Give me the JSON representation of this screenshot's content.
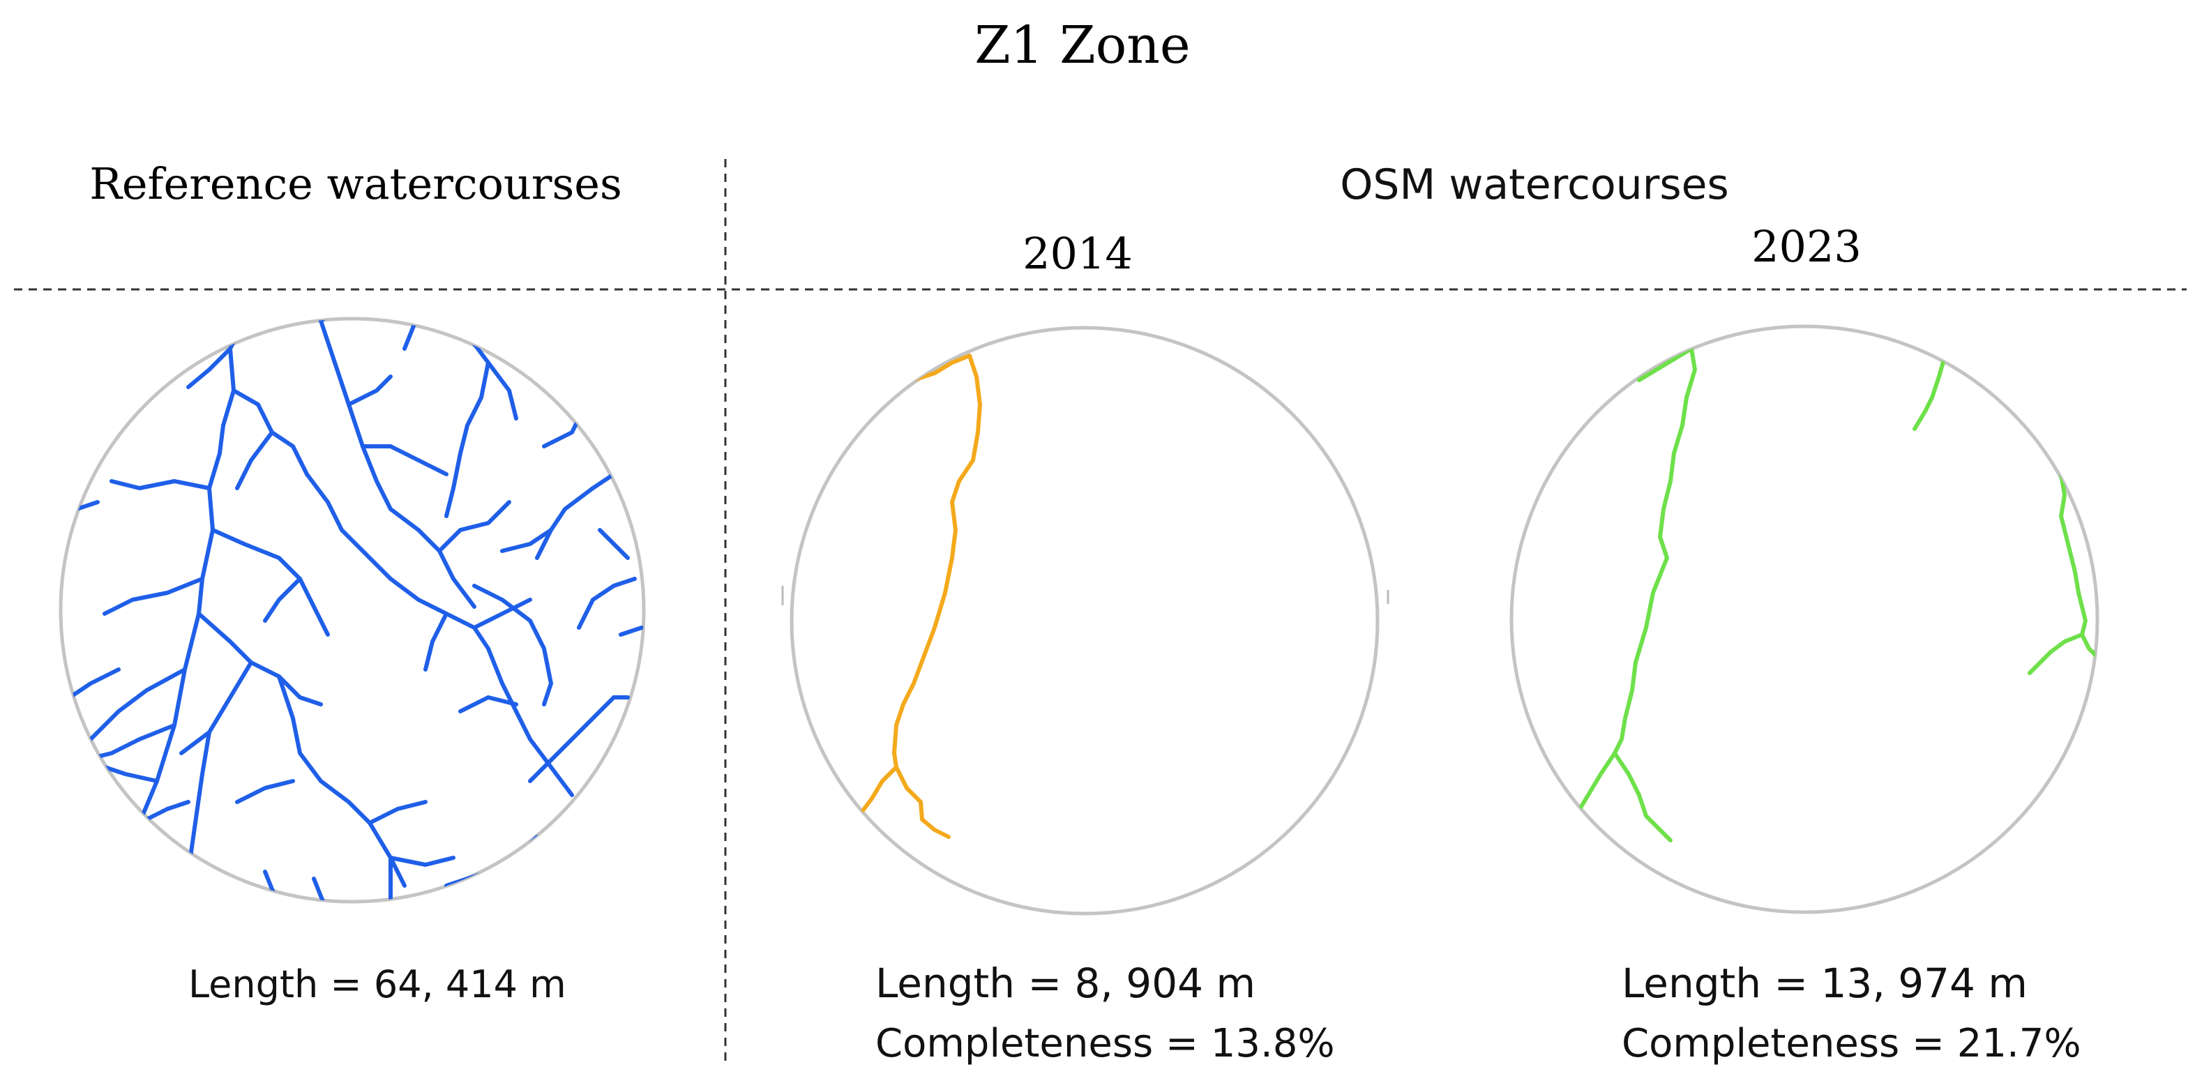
{
  "title": "Z1 Zone",
  "left_header": "Reference watercourses",
  "right_header": "OSM watercourses",
  "panels": [
    {
      "year": "",
      "length": "Length = 64, 414 m",
      "completeness": "",
      "color": "#1f5fe8"
    },
    {
      "year": "2014",
      "length": "Length = 8, 904 m",
      "completeness": "Completeness = 13.8%",
      "color": "#f4a91c"
    },
    {
      "year": "2023",
      "length": "Length = 13, 974 m",
      "completeness": "Completeness = 21.7%",
      "color": "#6ee04a"
    }
  ]
}
